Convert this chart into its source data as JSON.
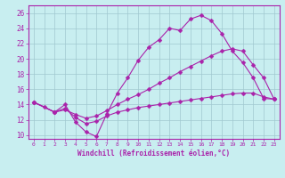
{
  "xlabel": "Windchill (Refroidissement éolien,°C)",
  "xlim": [
    -0.5,
    23.5
  ],
  "ylim": [
    9.5,
    27
  ],
  "xticks": [
    0,
    1,
    2,
    3,
    4,
    5,
    6,
    7,
    8,
    9,
    10,
    11,
    12,
    13,
    14,
    15,
    16,
    17,
    18,
    19,
    20,
    21,
    22,
    23
  ],
  "yticks": [
    10,
    12,
    14,
    16,
    18,
    20,
    22,
    24,
    26
  ],
  "background_color": "#c8eef0",
  "grid_color": "#a0c8d0",
  "line_color": "#aa22aa",
  "line1_x": [
    0,
    1,
    2,
    3,
    4,
    5,
    6,
    7,
    8,
    9,
    10,
    11,
    12,
    13,
    14,
    15,
    16,
    17,
    18,
    19,
    20,
    21,
    22,
    23
  ],
  "line1_y": [
    14.3,
    13.7,
    13.0,
    14.0,
    11.7,
    10.4,
    9.8,
    12.8,
    15.5,
    17.5,
    19.8,
    21.5,
    22.5,
    24.0,
    23.7,
    25.2,
    25.7,
    25.0,
    23.3,
    21.0,
    19.5,
    17.5,
    14.8,
    14.7
  ],
  "line2_x": [
    0,
    2,
    3,
    4,
    5,
    6,
    7,
    8,
    9,
    10,
    11,
    12,
    13,
    14,
    15,
    16,
    17,
    18,
    19,
    20,
    21,
    22,
    23
  ],
  "line2_y": [
    14.3,
    13.0,
    13.3,
    12.7,
    12.2,
    12.5,
    13.2,
    14.0,
    14.7,
    15.3,
    16.0,
    16.8,
    17.5,
    18.3,
    19.0,
    19.7,
    20.4,
    21.0,
    21.3,
    21.0,
    19.2,
    17.5,
    14.7
  ],
  "line3_x": [
    0,
    2,
    3,
    4,
    5,
    6,
    7,
    8,
    9,
    10,
    11,
    12,
    13,
    14,
    15,
    16,
    17,
    18,
    19,
    20,
    21,
    22,
    23
  ],
  "line3_y": [
    14.3,
    13.0,
    13.5,
    12.3,
    11.5,
    11.8,
    12.5,
    13.0,
    13.3,
    13.6,
    13.8,
    14.0,
    14.2,
    14.4,
    14.6,
    14.8,
    15.0,
    15.2,
    15.4,
    15.5,
    15.5,
    15.0,
    14.7
  ]
}
